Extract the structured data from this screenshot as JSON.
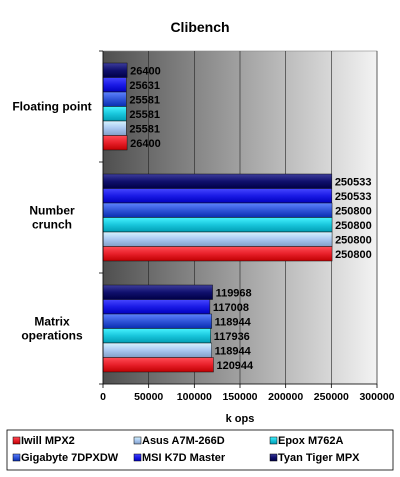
{
  "chart_data": {
    "type": "bar",
    "orientation": "horizontal",
    "title": "Clibench",
    "xlabel": "k ops",
    "ylabel": "",
    "xlim": [
      0,
      300000
    ],
    "xticks": [
      0,
      50000,
      100000,
      150000,
      200000,
      250000,
      300000
    ],
    "grid": true,
    "legend_position": "bottom",
    "categories": [
      "Floating point",
      "Number crunch",
      "Matrix operations"
    ],
    "category_lines": [
      [
        "Floating point"
      ],
      [
        "Number",
        "crunch"
      ],
      [
        "Matrix",
        "operations"
      ]
    ],
    "series": [
      {
        "name": "Iwill MPX2",
        "color": "#e8202a",
        "values": [
          26400,
          250800,
          120944
        ]
      },
      {
        "name": "Asus A7M-266D",
        "color": "#a9c7f0",
        "values": [
          25581,
          250800,
          118944
        ]
      },
      {
        "name": "Epox M762A",
        "color": "#19c6dc",
        "values": [
          25581,
          250800,
          117936
        ]
      },
      {
        "name": "Gigabyte 7DPXDW",
        "color": "#3055d8",
        "values": [
          25581,
          250800,
          118944
        ]
      },
      {
        "name": "MSI K7D Master",
        "color": "#1a1ae6",
        "values": [
          25631,
          250533,
          117008
        ]
      },
      {
        "name": "Tyan Tiger MPX",
        "color": "#10106e",
        "values": [
          26400,
          250533,
          119968
        ]
      }
    ],
    "legend_order": [
      "Iwill MPX2",
      "Asus A7M-266D",
      "Epox M762A",
      "Gigabyte 7DPXDW",
      "MSI K7D Master",
      "Tyan Tiger MPX"
    ]
  }
}
